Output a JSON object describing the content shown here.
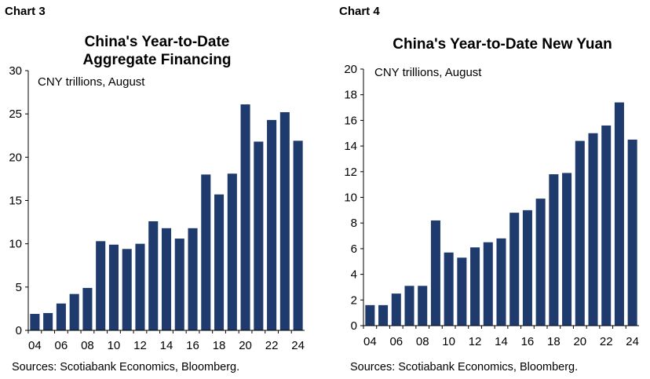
{
  "colors": {
    "bar": "#1f3a6d",
    "axis": "#000000"
  },
  "panels": [
    {
      "label": "Chart 3",
      "title_line1": "China's Year-to-Date",
      "title_line2": "Aggregate Financing",
      "unit_note": "CNY trillions, August",
      "source": "Sources: Scotiabank Economics, Bloomberg."
    },
    {
      "label": "Chart 4",
      "title_line1": "China's Year-to-Date New Yuan",
      "title_line2": "",
      "unit_note": "CNY trillions, August",
      "source": "Sources: Scotiabank Economics, Bloomberg."
    }
  ],
  "chart_data": [
    {
      "type": "bar",
      "title": "China's Year-to-Date Aggregate Financing",
      "ylabel": "CNY trillions, August",
      "ylim": [
        0,
        30
      ],
      "yticks": [
        "0",
        "5",
        "10",
        "15",
        "20",
        "25",
        "30"
      ],
      "categories": [
        "04",
        "05",
        "06",
        "07",
        "08",
        "09",
        "10",
        "11",
        "12",
        "13",
        "14",
        "15",
        "16",
        "17",
        "18",
        "19",
        "20",
        "21",
        "22",
        "23",
        "24"
      ],
      "x_tick_labels": [
        "04",
        "06",
        "08",
        "10",
        "12",
        "14",
        "16",
        "18",
        "20",
        "22",
        "24"
      ],
      "values": [
        1.9,
        2.0,
        3.1,
        4.2,
        4.9,
        10.3,
        9.9,
        9.4,
        10.0,
        12.6,
        11.8,
        10.6,
        11.8,
        18.0,
        15.7,
        18.1,
        26.1,
        21.8,
        24.3,
        25.2,
        21.9
      ],
      "grid": false,
      "legend": "none"
    },
    {
      "type": "bar",
      "title": "China's Year-to-Date New Yuan",
      "ylabel": "CNY trillions, August",
      "ylim": [
        0,
        20
      ],
      "yticks": [
        "0",
        "2",
        "4",
        "6",
        "8",
        "10",
        "12",
        "14",
        "16",
        "18",
        "20"
      ],
      "categories": [
        "04",
        "05",
        "06",
        "07",
        "08",
        "09",
        "10",
        "11",
        "12",
        "13",
        "14",
        "15",
        "16",
        "17",
        "18",
        "19",
        "20",
        "21",
        "22",
        "23",
        "24"
      ],
      "x_tick_labels": [
        "04",
        "06",
        "08",
        "10",
        "12",
        "14",
        "16",
        "18",
        "20",
        "22",
        "24"
      ],
      "values": [
        1.6,
        1.6,
        2.5,
        3.1,
        3.1,
        8.2,
        5.7,
        5.3,
        6.1,
        6.5,
        6.8,
        8.8,
        9.0,
        9.9,
        11.8,
        11.9,
        14.4,
        15.0,
        15.6,
        17.4,
        14.5
      ],
      "grid": false,
      "legend": "none"
    }
  ]
}
